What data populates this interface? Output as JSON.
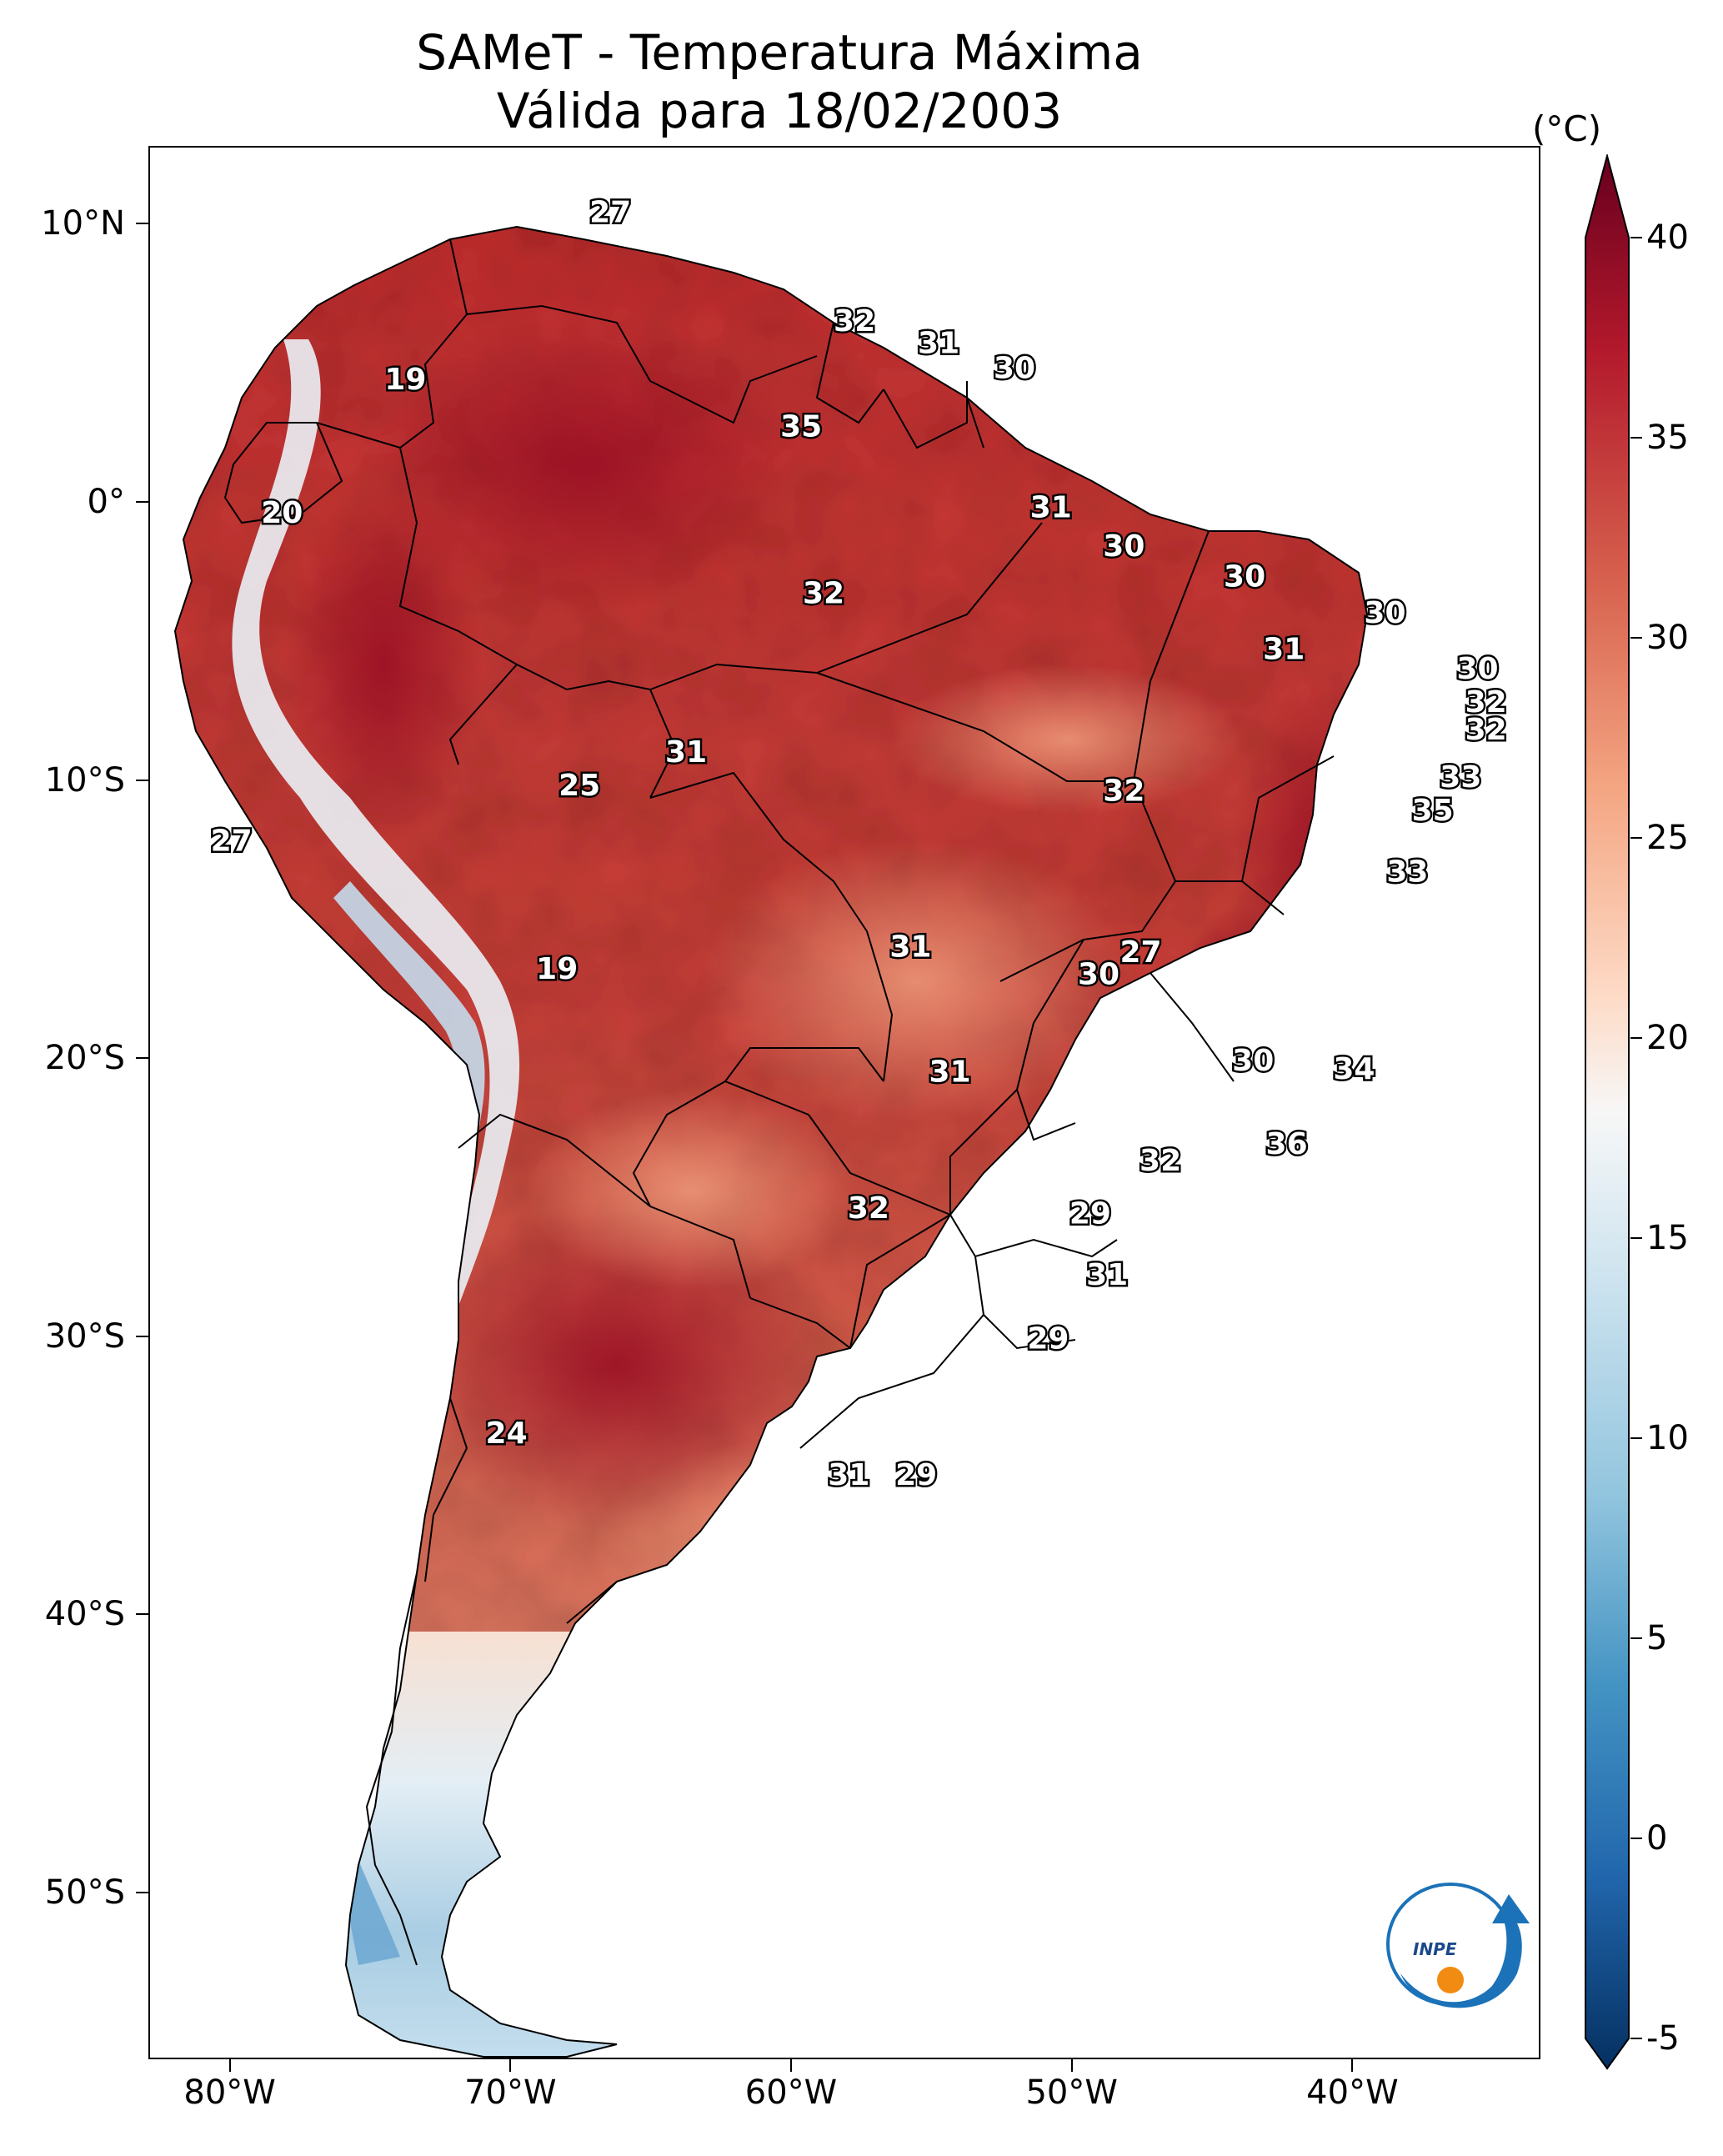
{
  "title_line1": "SAMeT - Temperatura Máxima",
  "title_line2": "Válida para 18/02/2003",
  "colorbar": {
    "unit": "(°C)",
    "ticks": [
      "40",
      "35",
      "30",
      "25",
      "20",
      "15",
      "10",
      "5",
      "0",
      "-5"
    ],
    "colors": [
      "#67001f",
      "#b2182b",
      "#d6604d",
      "#f4a582",
      "#fddbc7",
      "#f7f7f7",
      "#d1e5f0",
      "#92c5de",
      "#4393c3",
      "#2166ac",
      "#053061"
    ],
    "min": -5,
    "max": 40
  },
  "lat_labels": [
    "10°N",
    "0°",
    "10°S",
    "20°S",
    "30°S",
    "40°S",
    "50°S"
  ],
  "lon_labels": [
    "80°W",
    "70°W",
    "60°W",
    "50°W",
    "40°W"
  ],
  "logo_text": "INPE",
  "temperature_labels": [
    {
      "text": "27",
      "lon": -66.5,
      "lat": 10.5
    },
    {
      "text": "32",
      "lon": -57.8,
      "lat": 6.6
    },
    {
      "text": "31",
      "lon": -54.8,
      "lat": 5.8
    },
    {
      "text": "30",
      "lon": -52.1,
      "lat": 4.9
    },
    {
      "text": "19",
      "lon": -73.8,
      "lat": 4.5
    },
    {
      "text": "35",
      "lon": -59.7,
      "lat": 2.8
    },
    {
      "text": "20",
      "lon": -78.2,
      "lat": -0.3
    },
    {
      "text": "31",
      "lon": -50.8,
      "lat": -0.1
    },
    {
      "text": "30",
      "lon": -48.2,
      "lat": -1.5
    },
    {
      "text": "30",
      "lon": -43.9,
      "lat": -2.6
    },
    {
      "text": "32",
      "lon": -58.9,
      "lat": -3.2
    },
    {
      "text": "30",
      "lon": -38.9,
      "lat": -3.9
    },
    {
      "text": "31",
      "lon": -42.5,
      "lat": -5.2
    },
    {
      "text": "30",
      "lon": -35.6,
      "lat": -5.9
    },
    {
      "text": "32",
      "lon": -35.3,
      "lat": -7.1
    },
    {
      "text": "32",
      "lon": -35.3,
      "lat": -8.1
    },
    {
      "text": "31",
      "lon": -63.8,
      "lat": -8.9
    },
    {
      "text": "33",
      "lon": -36.2,
      "lat": -9.8
    },
    {
      "text": "25",
      "lon": -67.6,
      "lat": -10.1
    },
    {
      "text": "32",
      "lon": -48.2,
      "lat": -10.3
    },
    {
      "text": "35",
      "lon": -37.2,
      "lat": -11.0
    },
    {
      "text": "27",
      "lon": -80.0,
      "lat": -12.1
    },
    {
      "text": "33",
      "lon": -38.1,
      "lat": -13.2
    },
    {
      "text": "31",
      "lon": -55.8,
      "lat": -15.9
    },
    {
      "text": "27",
      "lon": -47.6,
      "lat": -16.1
    },
    {
      "text": "30",
      "lon": -49.1,
      "lat": -16.9
    },
    {
      "text": "19",
      "lon": -68.4,
      "lat": -16.7
    },
    {
      "text": "30",
      "lon": -43.6,
      "lat": -20.0
    },
    {
      "text": "34",
      "lon": -40.0,
      "lat": -20.3
    },
    {
      "text": "31",
      "lon": -54.4,
      "lat": -20.4
    },
    {
      "text": "36",
      "lon": -42.4,
      "lat": -23.0
    },
    {
      "text": "32",
      "lon": -46.9,
      "lat": -23.6
    },
    {
      "text": "32",
      "lon": -57.3,
      "lat": -25.3
    },
    {
      "text": "29",
      "lon": -49.4,
      "lat": -25.5
    },
    {
      "text": "31",
      "lon": -48.8,
      "lat": -27.7
    },
    {
      "text": "29",
      "lon": -50.9,
      "lat": -30.0
    },
    {
      "text": "24",
      "lon": -70.2,
      "lat": -33.4
    },
    {
      "text": "31",
      "lon": -58.0,
      "lat": -34.9
    },
    {
      "text": "29",
      "lon": -55.6,
      "lat": -34.9
    }
  ]
}
